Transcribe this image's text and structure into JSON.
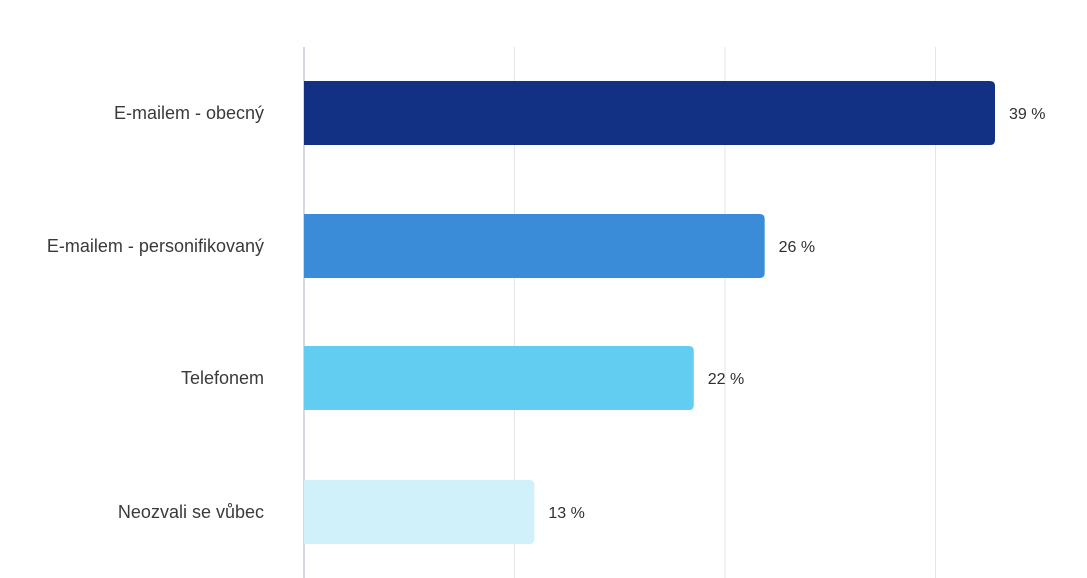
{
  "chart_data": {
    "type": "bar",
    "orientation": "horizontal",
    "categories": [
      "E-mailem - obecný",
      "E-mailem - personifikovaný",
      "Telefonem",
      "Neozvali se vůbec"
    ],
    "values": [
      39,
      26,
      22,
      13
    ],
    "value_labels": [
      "39 %",
      "26 %",
      "22 %",
      "13 %"
    ],
    "unit": "%",
    "colors": [
      "#133184",
      "#3a8bd8",
      "#62cdf0",
      "#d0f1fa"
    ],
    "xlim": [
      0,
      39
    ],
    "title": "",
    "xlabel": "",
    "ylabel": "",
    "grid": true,
    "legend": "none"
  }
}
